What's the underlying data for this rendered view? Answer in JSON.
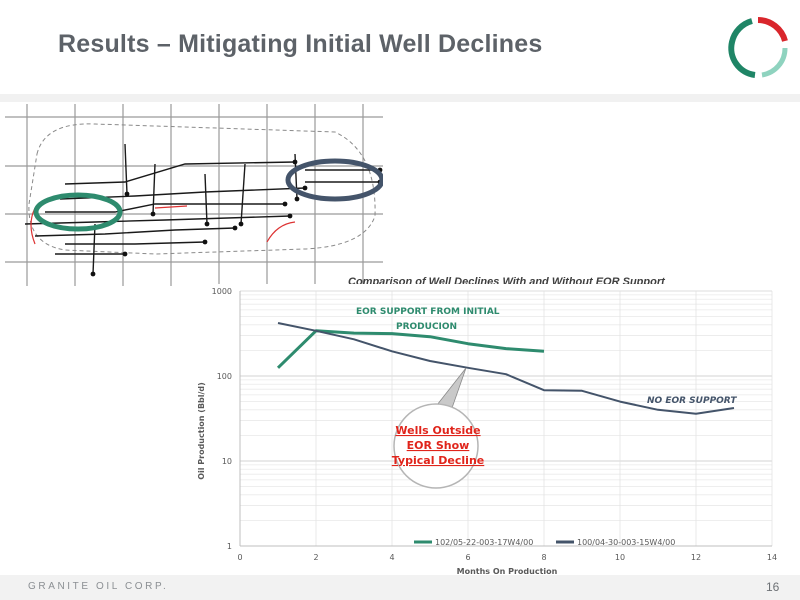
{
  "slide": {
    "title": "Results – Mitigating Initial Well Declines",
    "company": "GRANITE OIL CORP.",
    "page_number": "16"
  },
  "colors": {
    "eor_series": "#2e8b6e",
    "no_eor_series": "#44546a",
    "callout_text": "#e0241b",
    "logo_red": "#d9262c",
    "logo_green": "#1f8566",
    "logo_mint": "#8fd3bf"
  },
  "map": {
    "icon": "well-map-image",
    "highlights": [
      {
        "name": "eor-area",
        "color": "#2e8b6e"
      },
      {
        "name": "non-eor-area",
        "color": "#44546a"
      }
    ]
  },
  "chart_data": {
    "type": "line",
    "title": "Comparison of Well Declines With and Without EOR Support",
    "xlabel": "Months On Production",
    "ylabel": "Oil Production (Bbl/d)",
    "xlim": [
      0,
      14
    ],
    "ylim": [
      1,
      1000
    ],
    "y_scale": "log",
    "x_ticks": [
      0,
      2,
      4,
      6,
      8,
      10,
      12,
      14
    ],
    "x_tick_labels": [
      "0",
      "2",
      "4",
      "6",
      "8",
      "10",
      "12",
      "14"
    ],
    "y_ticks": [
      1,
      10,
      100,
      1000
    ],
    "y_tick_labels": [
      "1",
      "10",
      "100",
      "1000"
    ],
    "grid": true,
    "legend_position": "bottom",
    "series": [
      {
        "name": "102/05-22-003-17W4/00",
        "color": "#2e8b6e",
        "x": [
          1,
          2,
          3,
          4,
          5,
          6,
          7,
          8
        ],
        "y": [
          125,
          340,
          320,
          315,
          290,
          240,
          210,
          195
        ]
      },
      {
        "name": "100/04-30-003-15W4/00",
        "color": "#44546a",
        "x": [
          1,
          2,
          3,
          4,
          5,
          6,
          7,
          8,
          9,
          10,
          11,
          12,
          13
        ],
        "y": [
          420,
          340,
          270,
          195,
          150,
          125,
          105,
          68,
          67,
          50,
          40,
          36,
          42
        ]
      }
    ],
    "annotations": {
      "eor_label": [
        "EOR SUPPORT FROM INITIAL",
        "PRODUCION"
      ],
      "no_eor_label": "NO EOR SUPPORT",
      "callout": [
        "Wells Outside",
        "EOR Show",
        "Typical Decline"
      ]
    }
  }
}
